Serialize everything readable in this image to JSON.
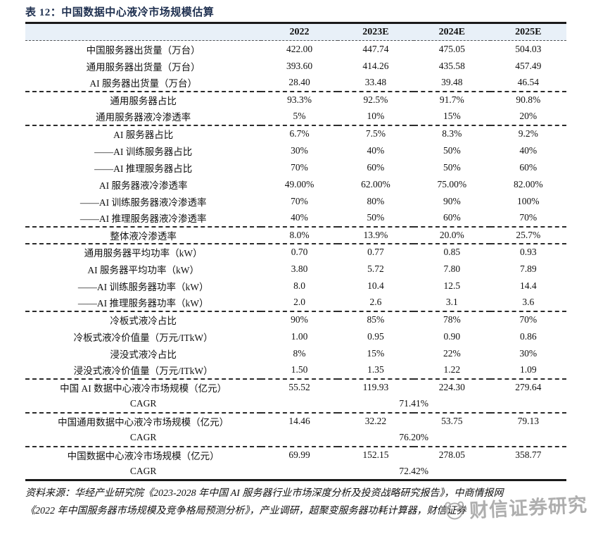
{
  "title": "表 12：中国数据中心液冷市场规模估算",
  "table": {
    "columns": [
      "2022",
      "2023E",
      "2024E",
      "2025E"
    ],
    "groups": [
      {
        "rows": [
          {
            "label": "中国服务器出货量（万台）",
            "values": [
              "422.00",
              "447.74",
              "475.05",
              "504.03"
            ]
          },
          {
            "label": "通用服务器出货量（万台）",
            "values": [
              "393.60",
              "414.26",
              "435.58",
              "457.49"
            ]
          },
          {
            "label": "AI 服务器出货量（万台）",
            "values": [
              "28.40",
              "33.48",
              "39.48",
              "46.54"
            ]
          }
        ]
      },
      {
        "rows": [
          {
            "label": "通用服务器占比",
            "values": [
              "93.3%",
              "92.5%",
              "91.7%",
              "90.8%"
            ]
          },
          {
            "label": "通用服务器液冷渗透率",
            "values": [
              "5%",
              "10%",
              "15%",
              "20%"
            ]
          }
        ]
      },
      {
        "rows": [
          {
            "label": "AI 服务器占比",
            "values": [
              "6.7%",
              "7.5%",
              "8.3%",
              "9.2%"
            ]
          },
          {
            "label": "——AI 训练服务器占比",
            "values": [
              "30%",
              "40%",
              "50%",
              "40%"
            ]
          },
          {
            "label": "——AI 推理服务器占比",
            "values": [
              "70%",
              "60%",
              "50%",
              "60%"
            ]
          },
          {
            "label": "AI 服务器液冷渗透率",
            "values": [
              "49.00%",
              "62.00%",
              "75.00%",
              "82.00%"
            ]
          },
          {
            "label": "——AI 训练服务器液冷渗透率",
            "values": [
              "70%",
              "80%",
              "90%",
              "100%"
            ]
          },
          {
            "label": "——AI 推理服务器液冷渗透率",
            "values": [
              "40%",
              "50%",
              "60%",
              "70%"
            ]
          }
        ]
      },
      {
        "rows": [
          {
            "label": "整体液冷渗透率",
            "values": [
              "8.0%",
              "13.9%",
              "20.0%",
              "25.7%"
            ]
          }
        ]
      },
      {
        "rows": [
          {
            "label": "通用服务器平均功率（kW）",
            "values": [
              "0.70",
              "0.77",
              "0.85",
              "0.93"
            ]
          },
          {
            "label": "AI 服务器平均功率（kW）",
            "values": [
              "3.80",
              "5.72",
              "7.80",
              "7.89"
            ]
          },
          {
            "label": "——AI 训练服务器功率（kW）",
            "values": [
              "8.0",
              "10.4",
              "12.5",
              "14.4"
            ]
          },
          {
            "label": "——AI 推理服务器功率（kW）",
            "values": [
              "2.0",
              "2.6",
              "3.1",
              "3.6"
            ]
          }
        ]
      },
      {
        "rows": [
          {
            "label": "冷板式液冷占比",
            "values": [
              "90%",
              "85%",
              "78%",
              "70%"
            ]
          },
          {
            "label": "冷板式液冷价值量（万元/ITkW）",
            "values": [
              "1.00",
              "0.95",
              "0.90",
              "0.86"
            ]
          },
          {
            "label": "浸没式液冷占比",
            "values": [
              "8%",
              "15%",
              "22%",
              "30%"
            ]
          },
          {
            "label": "浸没式液冷价值量（万元/ITkW）",
            "values": [
              "1.50",
              "1.35",
              "1.22",
              "1.09"
            ]
          }
        ]
      },
      {
        "rows": [
          {
            "label": "中国 AI 数据中心液冷市场规模（亿元）",
            "values": [
              "55.52",
              "119.93",
              "224.30",
              "279.64"
            ]
          },
          {
            "label": "CAGR",
            "span_value": "71.41%"
          }
        ]
      },
      {
        "rows": [
          {
            "label": "中国通用数据中心液冷市场规模（亿元）",
            "values": [
              "14.46",
              "32.22",
              "53.75",
              "79.13"
            ]
          },
          {
            "label": "CAGR",
            "span_value": "76.20%"
          }
        ]
      },
      {
        "rows": [
          {
            "label": "中国数据中心液冷市场规模（亿元）",
            "values": [
              "69.99",
              "152.15",
              "278.05",
              "358.77"
            ]
          },
          {
            "label": "CAGR",
            "span_value": "72.42%"
          }
        ]
      }
    ]
  },
  "source": {
    "lines": [
      "资料来源：华经产业研究院《2023-2028 年中国 AI 服务器行业市场深度分析及投资战略研究报告》，中商情报网",
      "《2022 年中国服务器市场规模及竞争格局预测分析》，产业调研，超聚变服务器功耗计算器，财信证券"
    ]
  },
  "watermark": {
    "text": "财信证券研究"
  },
  "colors": {
    "header_bg": "#e8f0f8",
    "rule": "#1a1a1a",
    "title": "#1f3050",
    "watermark": "#a6a6a6"
  }
}
